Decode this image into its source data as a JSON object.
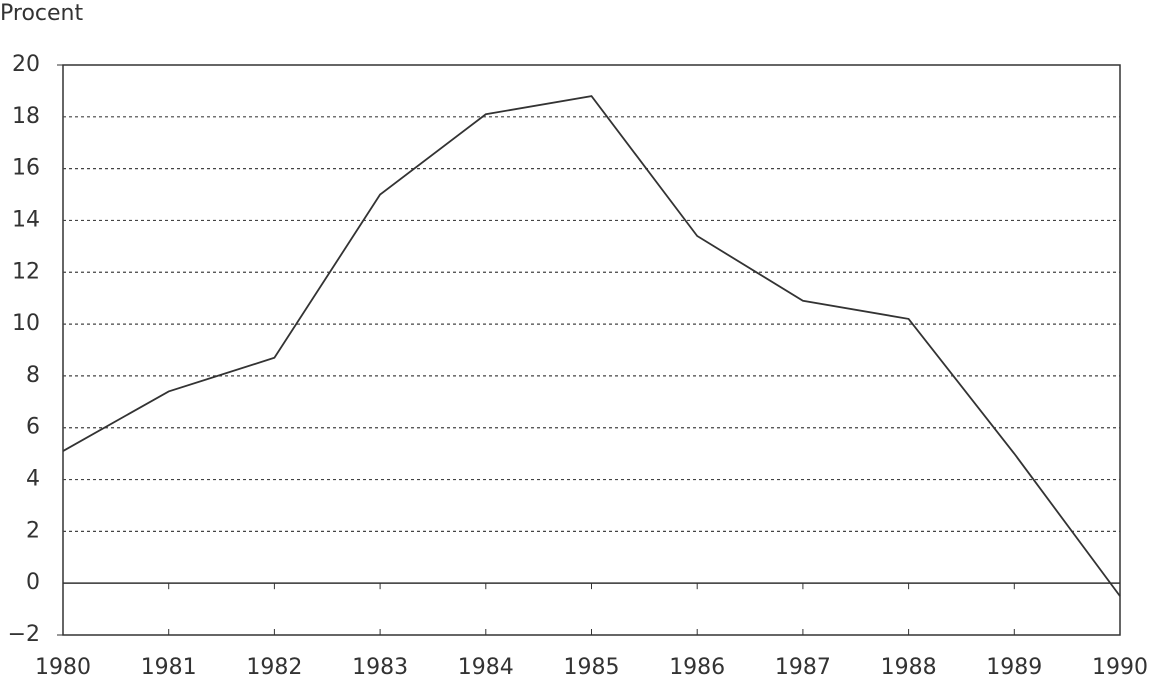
{
  "chart_data": {
    "type": "line",
    "y_label": "Procent",
    "x": [
      1980,
      1981,
      1982,
      1983,
      1984,
      1985,
      1986,
      1987,
      1988,
      1989,
      1990
    ],
    "series": [
      {
        "color": "#333333",
        "values": [
          5.1,
          7.4,
          8.7,
          15.0,
          18.1,
          18.8,
          13.4,
          10.9,
          10.2,
          5.0,
          -0.5
        ]
      }
    ],
    "xlim": [
      1980,
      1990
    ],
    "xticks": [
      1980,
      1981,
      1982,
      1983,
      1984,
      1985,
      1986,
      1987,
      1988,
      1989,
      1990
    ],
    "ylim": [
      -2,
      20
    ],
    "yticks": [
      {
        "value": -2,
        "label": "−2"
      },
      0,
      2,
      4,
      6,
      8,
      10,
      12,
      14,
      16,
      18,
      20
    ],
    "grid": true
  }
}
